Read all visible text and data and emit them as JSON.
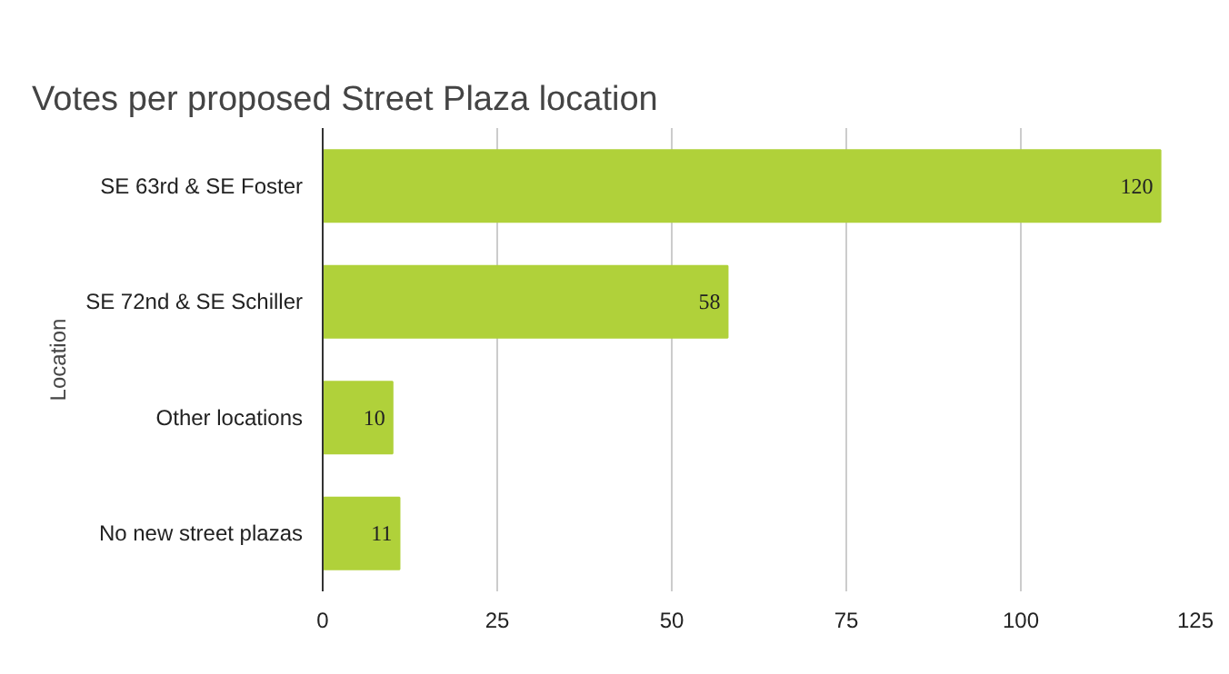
{
  "chart_data": {
    "type": "bar",
    "orientation": "horizontal",
    "title": "Votes per proposed Street Plaza location",
    "ylabel": "Location",
    "categories": [
      "SE 63rd & SE Foster",
      "SE 72nd & SE Schiller",
      "Other locations",
      "No new street plazas"
    ],
    "values": [
      120,
      58,
      10,
      11
    ],
    "color": "#b0d13a",
    "xlim": [
      0,
      125
    ],
    "xticks": [
      0,
      25,
      50,
      75,
      100,
      125
    ],
    "grid": "x",
    "data_labels": true
  }
}
